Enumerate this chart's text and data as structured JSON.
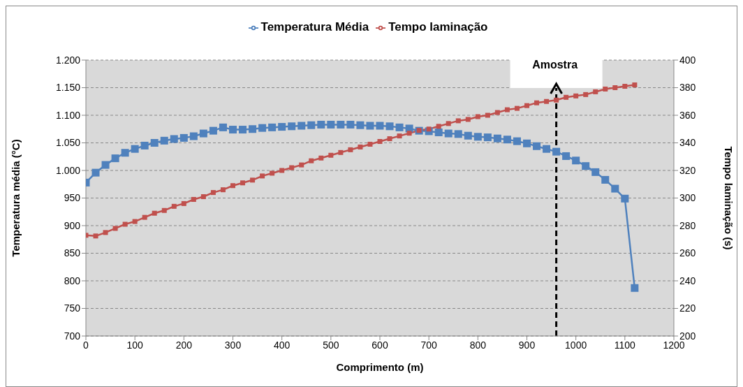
{
  "chart_data": {
    "type": "line",
    "xlabel": "Comprimento (m)",
    "ylabel": "Temperatura média (°C)",
    "y2label": "Tempo laminação (s)",
    "x": [
      0,
      20,
      40,
      60,
      80,
      100,
      120,
      140,
      160,
      180,
      200,
      220,
      240,
      260,
      280,
      300,
      320,
      340,
      360,
      380,
      400,
      420,
      440,
      460,
      480,
      500,
      520,
      540,
      560,
      580,
      600,
      620,
      640,
      660,
      680,
      700,
      720,
      740,
      760,
      780,
      800,
      820,
      840,
      860,
      880,
      900,
      920,
      940,
      960,
      980,
      1000,
      1020,
      1040,
      1060,
      1080,
      1100,
      1120
    ],
    "series": [
      {
        "name": "Temperatura Média",
        "color": "#4f81bd",
        "values": [
          978,
          996,
          1010,
          1022,
          1032,
          1039,
          1045,
          1050,
          1054,
          1057,
          1059,
          1062,
          1067,
          1072,
          1078,
          1074,
          1074,
          1075,
          1077,
          1078,
          1079,
          1080,
          1081,
          1082,
          1083,
          1083,
          1083,
          1083,
          1082,
          1081,
          1081,
          1080,
          1078,
          1076,
          1072,
          1071,
          1069,
          1067,
          1066,
          1063,
          1061,
          1060,
          1058,
          1056,
          1053,
          1049,
          1044,
          1039,
          1034,
          1026,
          1018,
          1008,
          997,
          983,
          967,
          949,
          787
        ]
      },
      {
        "name": "Tempo laminação",
        "color": "#c0504d",
        "axis": "y2",
        "values": [
          273,
          272.5,
          275,
          278,
          281,
          283,
          286,
          289,
          291,
          294,
          296,
          299,
          301,
          304,
          306,
          309,
          311,
          313,
          316,
          318,
          320,
          322,
          324,
          327,
          329,
          331,
          333,
          335,
          337,
          339,
          341,
          343,
          345,
          347,
          349,
          350,
          352,
          354,
          356,
          357,
          359,
          360,
          362,
          364,
          365,
          367,
          369,
          370,
          371,
          373,
          374,
          375,
          377,
          379,
          380,
          381,
          382
        ]
      }
    ],
    "xlim": [
      0,
      1200
    ],
    "xticks": [
      0,
      100,
      200,
      300,
      400,
      500,
      600,
      700,
      800,
      900,
      1000,
      1100,
      1200
    ],
    "ylim": [
      700,
      1200
    ],
    "yticks": [
      700,
      750,
      800,
      850,
      900,
      950,
      {
        "value": 1000,
        "label": "1.000"
      },
      {
        "value": 1050,
        "label": "1.050"
      },
      {
        "value": 1100,
        "label": "1.100"
      },
      {
        "value": 1150,
        "label": "1.150"
      },
      {
        "value": 1200,
        "label": "1.200"
      }
    ],
    "y2lim": [
      200,
      400
    ],
    "y2ticks": [
      200,
      220,
      240,
      260,
      280,
      300,
      320,
      340,
      360,
      380,
      400
    ],
    "ref_lines": [
      {
        "axis": "x",
        "value": 960,
        "label": "Amostra",
        "color": "#000000",
        "line_style": "dashed"
      }
    ],
    "grid": "y",
    "legend": "top",
    "marker": "square",
    "line_style": "solid"
  }
}
